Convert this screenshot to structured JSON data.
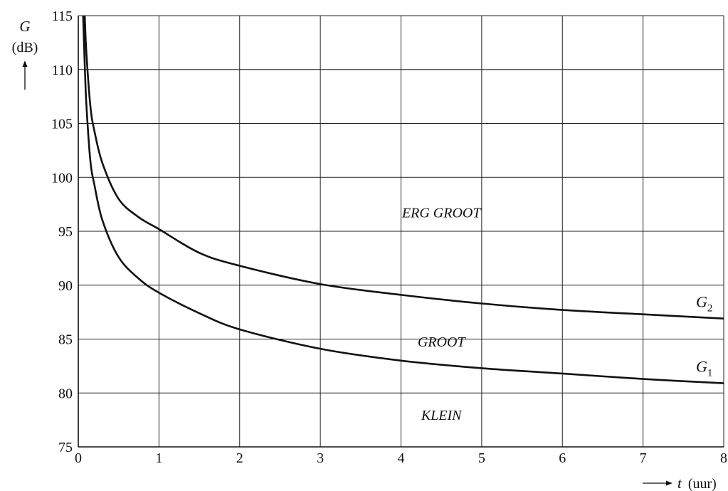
{
  "chart_data": {
    "type": "line",
    "xlabel": "t",
    "xunit": "(uur)",
    "ylabel": "G",
    "yunit": "(dB)",
    "xlim": [
      0,
      8
    ],
    "ylim": [
      75,
      115
    ],
    "xticks": [
      "0",
      "1",
      "2",
      "3",
      "4",
      "5",
      "6",
      "7",
      "8"
    ],
    "yticks": [
      "75",
      "80",
      "85",
      "90",
      "95",
      "100",
      "105",
      "110",
      "115"
    ],
    "grid": true,
    "series": [
      {
        "name": "G2",
        "label_main": "G",
        "label_sub": "2",
        "x": [
          0.08,
          0.1,
          0.15,
          0.2,
          0.3,
          0.5,
          0.75,
          1,
          1.5,
          2,
          3,
          4,
          5,
          6,
          7,
          8
        ],
        "y": [
          115,
          111.6,
          106.6,
          104.3,
          101.3,
          98.0,
          96.3,
          95.2,
          93.0,
          91.8,
          90.1,
          89.1,
          88.3,
          87.7,
          87.3,
          86.9
        ]
      },
      {
        "name": "G1",
        "label_main": "G",
        "label_sub": "1",
        "x": [
          0.06,
          0.08,
          0.1,
          0.15,
          0.2,
          0.3,
          0.5,
          0.75,
          1,
          1.5,
          2,
          3,
          4,
          5,
          6,
          7,
          8
        ],
        "y": [
          115,
          110.5,
          106.8,
          101.5,
          99.3,
          96.0,
          92.6,
          90.6,
          89.3,
          87.4,
          85.9,
          84.1,
          83.0,
          82.3,
          81.8,
          81.3,
          80.9
        ]
      }
    ],
    "regions": [
      {
        "label": "ERG GROOT",
        "x": 4.5,
        "y": 96.3
      },
      {
        "label": "GROOT",
        "x": 4.5,
        "y": 84.3
      },
      {
        "label": "KLEIN",
        "x": 4.5,
        "y": 77.5
      }
    ]
  }
}
